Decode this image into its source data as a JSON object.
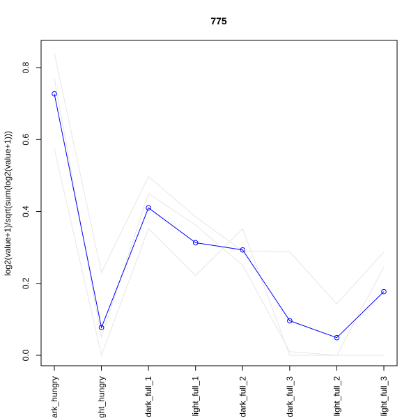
{
  "chart_data": {
    "type": "line",
    "title": "775",
    "xlabel": "",
    "ylabel": "log2(value+1)/sqrt(sum(log2(value+1)))",
    "categories": [
      "dark_hungry",
      "light_hungry",
      "dark_full_1",
      "light_full_1",
      "dark_full_2",
      "dark_full_3",
      "light_full_2",
      "light_full_3"
    ],
    "category_labels_shown": [
      "ark_hungry",
      "ght_hungry",
      "dark_full_1",
      "light_full_1",
      "dark_full_2",
      "dark_full_3",
      "light_full_2",
      "light_full_3"
    ],
    "ylim": [
      -0.03,
      0.85
    ],
    "yticks": [
      0.0,
      0.2,
      0.4,
      0.6,
      0.8
    ],
    "ytick_labels": [
      "0.0",
      "0.2",
      "0.4",
      "0.6",
      "0.8"
    ],
    "grid": false,
    "series": [
      {
        "values": [
          0.727,
          0.077,
          0.41,
          0.313,
          0.293,
          0.096,
          0.049,
          0.177
        ],
        "color": "#0000ff",
        "markers": true
      },
      {
        "values": [
          0.84,
          0.23,
          0.497,
          0.385,
          0.29,
          0.287,
          0.143,
          0.287
        ],
        "color": "#e6e6e6",
        "markers": false
      },
      {
        "values": [
          0.77,
          0.05,
          0.45,
          0.362,
          0.25,
          0.01,
          0.0,
          0.245
        ],
        "color": "#e6e6e6",
        "markers": false
      },
      {
        "values": [
          0.575,
          0.0,
          0.352,
          0.222,
          0.352,
          0.0,
          0.0,
          0.0
        ],
        "color": "#e6e6e6",
        "markers": false
      }
    ]
  }
}
